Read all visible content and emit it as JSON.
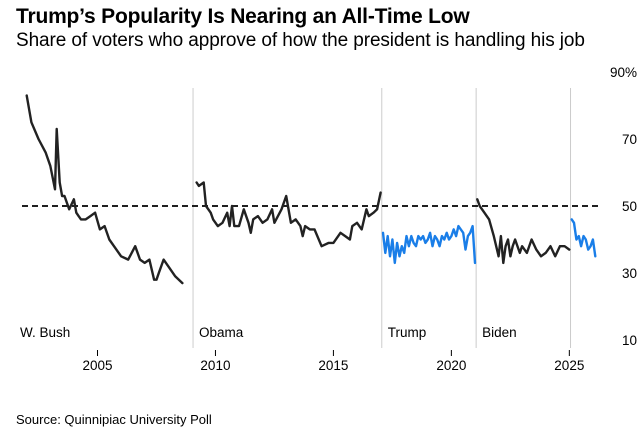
{
  "header": {
    "title": "Trump’s Popularity Is Nearing an All-Time Low",
    "subtitle": "Share of voters who approve of how the president is handling his job"
  },
  "footer": {
    "source": "Source: Quinnipiac University Poll"
  },
  "colors": {
    "approval": "#222222",
    "trump": "#1a7ee8",
    "divider": "#cccccc",
    "reference": "#000000"
  },
  "chart_data": {
    "type": "line",
    "title": "Trump’s Popularity Is Nearing an All-Time Low",
    "subtitle": "Share of voters who approve of how the president is handling his job",
    "xlabel": "",
    "ylabel": "",
    "xlim": [
      2001.8,
      2026.3
    ],
    "ylim": [
      10,
      90
    ],
    "xticks": [
      2005,
      2010,
      2015,
      2020,
      2025
    ],
    "xtick_labels": [
      "2005",
      "2010",
      "2015",
      "2020",
      "2025"
    ],
    "yticks": [
      90,
      70,
      50,
      30,
      10
    ],
    "ytick_labels": [
      "90%",
      "70",
      "50",
      "30",
      "10"
    ],
    "reference_line": {
      "value": 50,
      "style": "dashed"
    },
    "presidencies": [
      {
        "name": "W. Bush",
        "start": 2001.0
      },
      {
        "name": "Obama",
        "start": 2009.05
      },
      {
        "name": "Trump",
        "start": 2017.05
      },
      {
        "name": "Biden",
        "start": 2021.05
      }
    ],
    "term_dividers": [
      2009.05,
      2017.05,
      2021.05,
      2025.05
    ],
    "series": [
      {
        "name": "W. Bush",
        "color": "#222222",
        "x": [
          2002.0,
          2002.2,
          2002.5,
          2002.8,
          2003.0,
          2003.2,
          2003.27,
          2003.4,
          2003.5,
          2003.6,
          2003.8,
          2004.0,
          2004.1,
          2004.2,
          2004.3,
          2004.5,
          2004.7,
          2004.9,
          2005.1,
          2005.3,
          2005.5,
          2005.7,
          2006.0,
          2006.3,
          2006.6,
          2006.8,
          2007.0,
          2007.2,
          2007.4,
          2007.5,
          2007.6,
          2007.8,
          2008.0,
          2008.3,
          2008.6
        ],
        "values": [
          83,
          75,
          70,
          66,
          62,
          55,
          73,
          57,
          53,
          53,
          49,
          52,
          48,
          47,
          46,
          46,
          47,
          48,
          43,
          44,
          40,
          38,
          35,
          34,
          38,
          34,
          33,
          34,
          28,
          28,
          30,
          34,
          32,
          29,
          27
        ]
      },
      {
        "name": "Obama",
        "color": "#222222",
        "x": [
          2009.2,
          2009.3,
          2009.5,
          2009.6,
          2009.8,
          2009.9,
          2010.1,
          2010.3,
          2010.5,
          2010.6,
          2010.7,
          2010.8,
          2011.0,
          2011.2,
          2011.4,
          2011.5,
          2011.6,
          2011.8,
          2012.0,
          2012.2,
          2012.4,
          2012.5,
          2012.8,
          2013.0,
          2013.2,
          2013.4,
          2013.6,
          2013.7,
          2013.8,
          2014.0,
          2014.2,
          2014.5,
          2014.8,
          2015.0,
          2015.3,
          2015.5,
          2015.7,
          2015.8,
          2016.0,
          2016.2,
          2016.4,
          2016.5,
          2016.7,
          2016.85,
          2017.0
        ],
        "values": [
          57,
          56,
          57,
          50,
          48,
          46,
          44,
          45,
          48,
          44,
          50,
          44,
          44,
          49,
          45,
          42,
          46,
          47,
          45,
          46,
          49,
          45,
          49,
          53,
          45,
          46,
          44,
          41,
          44,
          43,
          43,
          38,
          39,
          39,
          42,
          41,
          40,
          44,
          45,
          43,
          49,
          47,
          48,
          49,
          54
        ]
      },
      {
        "name": "Trump",
        "color": "#1a7ee8",
        "x": [
          2017.1,
          2017.2,
          2017.3,
          2017.4,
          2017.5,
          2017.6,
          2017.7,
          2017.8,
          2017.9,
          2018.0,
          2018.1,
          2018.2,
          2018.3,
          2018.4,
          2018.5,
          2018.6,
          2018.7,
          2018.8,
          2018.9,
          2019.0,
          2019.1,
          2019.2,
          2019.3,
          2019.4,
          2019.5,
          2019.6,
          2019.7,
          2019.8,
          2019.9,
          2020.0,
          2020.1,
          2020.2,
          2020.3,
          2020.4,
          2020.5,
          2020.6,
          2020.7,
          2020.8,
          2020.9,
          2021.0
        ],
        "values": [
          42,
          36,
          41,
          35,
          40,
          33,
          39,
          35,
          38,
          36,
          41,
          38,
          41,
          39,
          38,
          41,
          40,
          41,
          39,
          40,
          42,
          38,
          41,
          40,
          38,
          41,
          40,
          42,
          40,
          41,
          43,
          41,
          44,
          43,
          42,
          37,
          41,
          42,
          44,
          33
        ]
      },
      {
        "name": "Biden",
        "color": "#222222",
        "x": [
          2021.1,
          2021.2,
          2021.4,
          2021.6,
          2021.8,
          2022.0,
          2022.1,
          2022.2,
          2022.3,
          2022.4,
          2022.5,
          2022.6,
          2022.7,
          2022.9,
          2023.0,
          2023.2,
          2023.4,
          2023.6,
          2023.8,
          2024.0,
          2024.2,
          2024.4,
          2024.6,
          2024.8,
          2025.0
        ],
        "values": [
          52,
          50,
          48,
          46,
          41,
          35,
          41,
          33,
          38,
          40,
          35,
          38,
          40,
          36,
          38,
          36,
          40,
          37,
          35,
          36,
          38,
          35,
          38,
          38,
          37
        ]
      },
      {
        "name": "Trump",
        "color": "#1a7ee8",
        "x": [
          2025.1,
          2025.2,
          2025.3,
          2025.4,
          2025.5,
          2025.6,
          2025.7,
          2025.8,
          2025.9,
          2026.0,
          2026.1
        ],
        "values": [
          46,
          45,
          40,
          41,
          38,
          41,
          40,
          37,
          38,
          40,
          35
        ]
      }
    ]
  }
}
